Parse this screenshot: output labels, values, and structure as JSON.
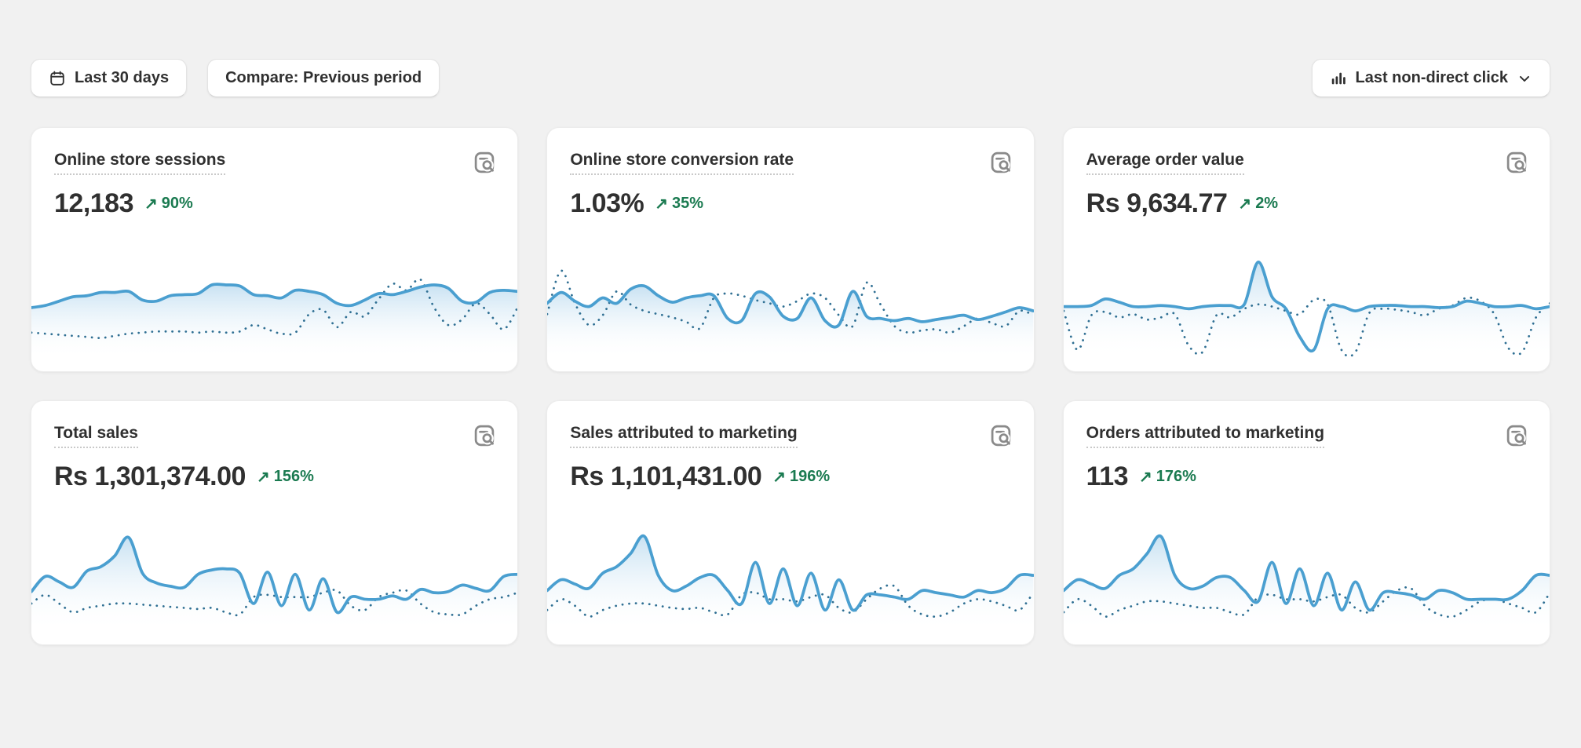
{
  "theme": {
    "page_bg": "#f1f1f1",
    "card_bg": "#ffffff",
    "text_primary": "#303030",
    "positive_green": "#1a7a50",
    "icon_gray": "#8a8a8a",
    "line_current": "#4a9fd0",
    "line_previous": "#2f6f93",
    "fill_top": "#8fc3e5"
  },
  "controls": {
    "date_range": {
      "label": "Last 30 days",
      "icon": "calendar-icon"
    },
    "compare": {
      "label": "Compare: Previous period"
    },
    "attribution": {
      "label": "Last non-direct click",
      "icon": "bar-chart-icon",
      "chevron": "chevron-down-icon"
    }
  },
  "cards": [
    {
      "title": "Online store sessions",
      "value": "12,183",
      "trend_icon": "↗",
      "delta": "90%",
      "chart": {
        "type": "area-line",
        "series_names": [
          "current period",
          "previous period"
        ],
        "unit": "relative height 0-100",
        "current": [
          50,
          52,
          56,
          60,
          61,
          64,
          64,
          65,
          57,
          56,
          61,
          62,
          63,
          71,
          71,
          70,
          62,
          61,
          59,
          66,
          65,
          62,
          54,
          52,
          57,
          63,
          62,
          65,
          69,
          71,
          68,
          56,
          55,
          64,
          66,
          65
        ],
        "previous": [
          27,
          26,
          25,
          24,
          23,
          22,
          24,
          26,
          27,
          28,
          28,
          28,
          27,
          28,
          27,
          28,
          34,
          30,
          26,
          27,
          44,
          48,
          32,
          46,
          42,
          58,
          72,
          66,
          76,
          50,
          34,
          39,
          54,
          44,
          30,
          50
        ]
      }
    },
    {
      "title": "Online store conversion rate",
      "value": "1.03%",
      "trend_icon": "↗",
      "delta": "35%",
      "chart": {
        "type": "area-line",
        "series_names": [
          "current period",
          "previous period"
        ],
        "unit": "relative height 0-100",
        "current": [
          54,
          64,
          56,
          51,
          59,
          54,
          67,
          70,
          61,
          55,
          59,
          61,
          61,
          40,
          38,
          63,
          60,
          42,
          40,
          59,
          38,
          34,
          65,
          42,
          40,
          38,
          40,
          37,
          39,
          41,
          43,
          39,
          42,
          46,
          50,
          47
        ],
        "previous": [
          44,
          84,
          54,
          34,
          43,
          65,
          53,
          47,
          44,
          41,
          37,
          31,
          59,
          63,
          61,
          57,
          54,
          51,
          56,
          63,
          59,
          43,
          33,
          73,
          53,
          33,
          27,
          29,
          30,
          27,
          33,
          40,
          36,
          33,
          47,
          43
        ]
      }
    },
    {
      "title": "Average order value",
      "value": "Rs 9,634.77",
      "trend_icon": "↗",
      "delta": "2%",
      "chart": {
        "type": "area-line",
        "series_names": [
          "current period",
          "previous period"
        ],
        "unit": "relative height 0-100",
        "current": [
          51,
          51,
          52,
          58,
          55,
          51,
          51,
          52,
          51,
          49,
          51,
          52,
          52,
          53,
          92,
          60,
          49,
          23,
          11,
          49,
          51,
          47,
          51,
          52,
          52,
          51,
          51,
          50,
          51,
          56,
          54,
          51,
          51,
          52,
          49,
          51
        ],
        "previous": [
          47,
          11,
          43,
          46,
          41,
          44,
          39,
          41,
          44,
          15,
          9,
          43,
          41,
          49,
          53,
          51,
          47,
          44,
          57,
          53,
          11,
          9,
          45,
          49,
          48,
          46,
          43,
          49,
          52,
          59,
          56,
          44,
          13,
          9,
          41,
          54
        ]
      }
    },
    {
      "title": "Total sales",
      "value": "Rs 1,301,374.00",
      "trend_icon": "↗",
      "delta": "156%",
      "chart": {
        "type": "area-line",
        "series_names": [
          "current period",
          "previous period"
        ],
        "unit": "relative height 0-100",
        "current": [
          40,
          54,
          49,
          44,
          59,
          63,
          73,
          90,
          57,
          48,
          45,
          44,
          56,
          60,
          61,
          57,
          29,
          58,
          27,
          56,
          23,
          52,
          21,
          35,
          33,
          33,
          36,
          33,
          42,
          39,
          40,
          46,
          43,
          41,
          54,
          56
        ],
        "previous": [
          29,
          37,
          29,
          21,
          25,
          27,
          29,
          29,
          28,
          27,
          26,
          25,
          24,
          25,
          21,
          19,
          35,
          37,
          35,
          35,
          35,
          39,
          41,
          27,
          23,
          35,
          39,
          41,
          29,
          21,
          19,
          19,
          27,
          33,
          35,
          39
        ]
      }
    },
    {
      "title": "Sales attributed to marketing",
      "value": "Rs 1,101,431.00",
      "trend_icon": "↗",
      "delta": "196%",
      "chart": {
        "type": "area-line",
        "series_names": [
          "current period",
          "previous period"
        ],
        "unit": "relative height 0-100",
        "current": [
          41,
          51,
          47,
          43,
          57,
          63,
          75,
          91,
          55,
          41,
          45,
          53,
          55,
          41,
          29,
          67,
          29,
          61,
          27,
          57,
          23,
          51,
          23,
          37,
          37,
          35,
          33,
          41,
          39,
          37,
          35,
          41,
          39,
          43,
          55,
          55
        ],
        "previous": [
          23,
          33,
          27,
          17,
          23,
          27,
          29,
          29,
          27,
          25,
          24,
          25,
          21,
          19,
          37,
          39,
          33,
          33,
          31,
          35,
          37,
          25,
          21,
          33,
          43,
          45,
          27,
          19,
          17,
          21,
          29,
          33,
          31,
          27,
          23,
          39
        ]
      }
    },
    {
      "title": "Orders attributed to marketing",
      "value": "113",
      "trend_icon": "↗",
      "delta": "176%",
      "chart": {
        "type": "area-line",
        "series_names": [
          "current period",
          "previous period"
        ],
        "unit": "relative height 0-100",
        "current": [
          41,
          51,
          47,
          43,
          55,
          61,
          75,
          91,
          55,
          43,
          45,
          53,
          53,
          41,
          31,
          67,
          29,
          61,
          27,
          57,
          23,
          49,
          23,
          39,
          39,
          37,
          33,
          41,
          39,
          33,
          33,
          33,
          33,
          41,
          55,
          55
        ],
        "previous": [
          21,
          33,
          27,
          17,
          23,
          27,
          31,
          31,
          29,
          27,
          25,
          25,
          21,
          19,
          35,
          37,
          33,
          33,
          31,
          35,
          37,
          25,
          21,
          31,
          41,
          43,
          27,
          19,
          17,
          23,
          31,
          33,
          29,
          25,
          21,
          39
        ]
      }
    }
  ]
}
